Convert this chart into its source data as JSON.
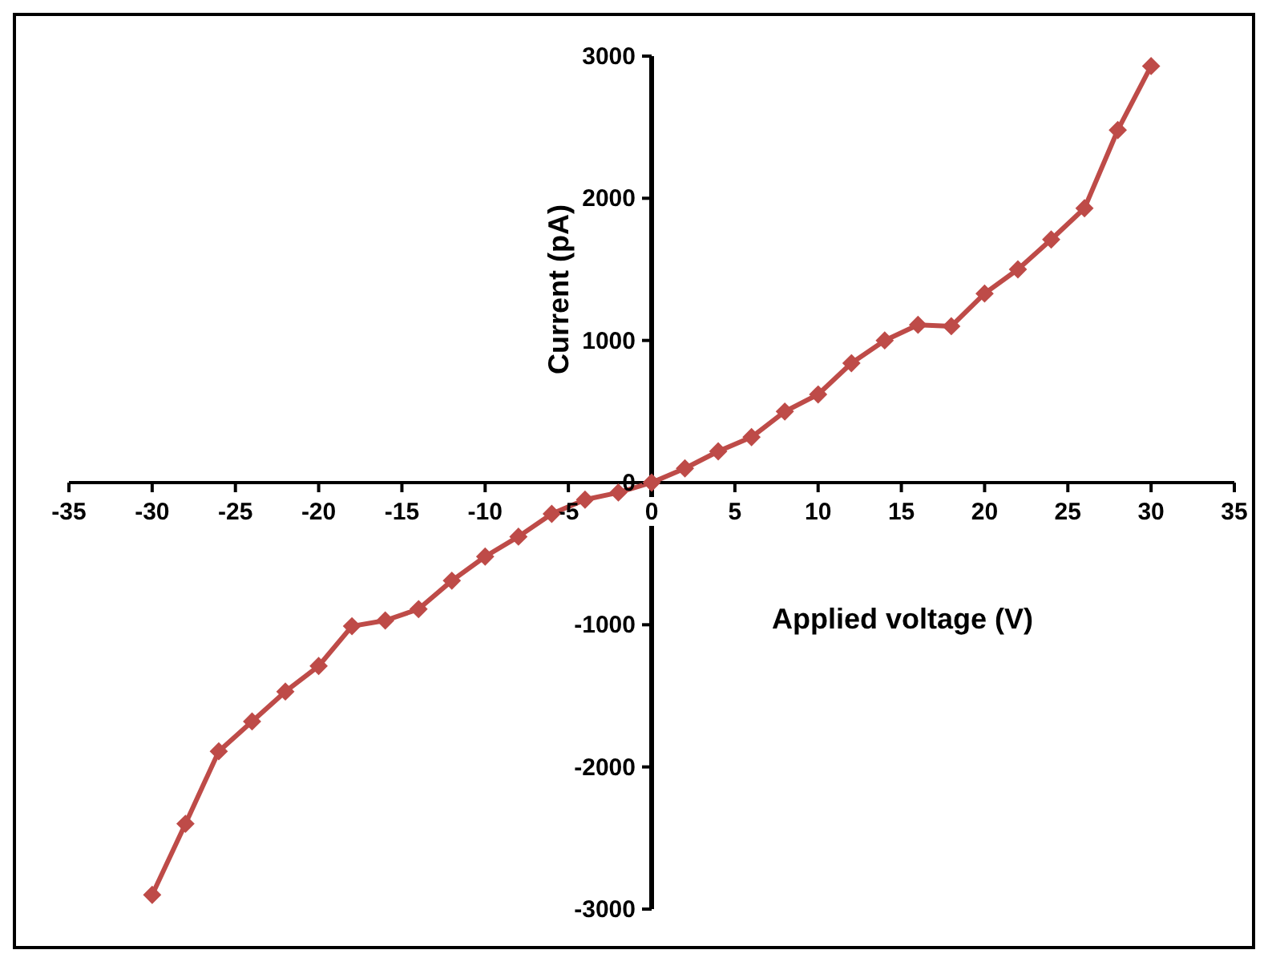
{
  "chart_data": {
    "type": "line",
    "xlabel": "Applied voltage (V)",
    "ylabel": "Current (pA)",
    "x": [
      -30,
      -28,
      -26,
      -24,
      -22,
      -20,
      -18,
      -16,
      -14,
      -12,
      -10,
      -8,
      -6,
      -4,
      -2,
      0,
      2,
      4,
      6,
      8,
      10,
      12,
      14,
      16,
      18,
      20,
      22,
      24,
      26,
      28,
      30
    ],
    "series": [
      {
        "color": "#be4b48",
        "values": [
          -2900,
          -2400,
          -1890,
          -1680,
          -1470,
          -1290,
          -1010,
          -970,
          -890,
          -690,
          -520,
          -380,
          -220,
          -120,
          -70,
          0,
          100,
          220,
          320,
          500,
          620,
          840,
          1000,
          1110,
          1100,
          1330,
          1500,
          1710,
          1930,
          2480,
          2930
        ]
      }
    ],
    "xlim": [
      -35,
      35
    ],
    "xticks": [
      -35,
      -30,
      -25,
      -20,
      -15,
      -10,
      -5,
      0,
      5,
      10,
      15,
      20,
      25,
      30,
      35
    ],
    "ylim": [
      -3000,
      3000
    ],
    "yticks": [
      -3000,
      -2000,
      -1000,
      0,
      1000,
      2000,
      3000
    ],
    "marker": "diamond",
    "line_style": "solid",
    "grid": false,
    "legend": false
  }
}
